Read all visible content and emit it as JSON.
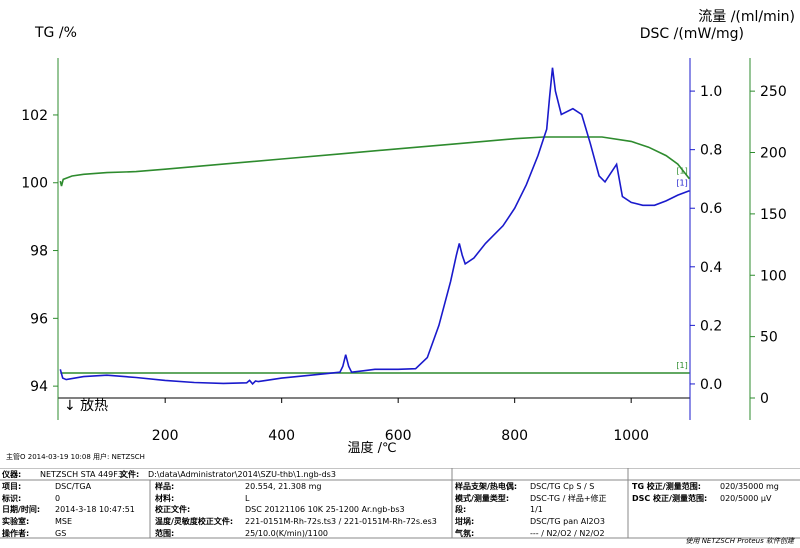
{
  "chart_data": {
    "type": "line",
    "y_label": "TG /%",
    "y2_label": "DSC /(mW/mg)",
    "y3_label": "流量 /(ml/min)",
    "x_label": "温度 /℃",
    "exo_label": "↓ 放热",
    "stamp": "主管O  2014-03-19 10:08  用户: NETZSCH",
    "xlim": [
      16,
      1101
    ],
    "xticks": [
      200,
      400,
      600,
      800,
      1000
    ],
    "ylim": [
      93.65,
      103.68
    ],
    "yticks": [
      94,
      96,
      98,
      100,
      102
    ],
    "y2lim": [
      -0.048,
      1.113
    ],
    "y2ticks": [
      {
        "value": 0,
        "label": "0.0"
      },
      0.2,
      0.4,
      0.6,
      0.8,
      {
        "value": 1,
        "label": "1.0"
      }
    ],
    "y3lim": [
      0,
      277
    ],
    "y3ticks": [
      0,
      50,
      100,
      150,
      200,
      250
    ],
    "series": [
      {
        "axis": "y",
        "color": "#2e8b2e",
        "end_label": "[1]",
        "x": [
          20,
          22,
          25,
          40,
          60,
          100,
          150,
          200,
          300,
          400,
          500,
          600,
          700,
          800,
          850,
          900,
          950,
          1000,
          1030,
          1060,
          1080,
          1100
        ],
        "values": [
          100.05,
          99.9,
          100.1,
          100.2,
          100.25,
          100.3,
          100.33,
          100.4,
          100.55,
          100.7,
          100.85,
          101.0,
          101.15,
          101.3,
          101.35,
          101.35,
          101.35,
          101.22,
          101.05,
          100.8,
          100.55,
          100.12
        ]
      },
      {
        "axis": "y3",
        "color": "#2e8b2e",
        "end_label": "[1]",
        "x": [
          20,
          1100
        ],
        "values": [
          20.4,
          20.4
        ]
      },
      {
        "axis": "y2",
        "color": "#1a1acc",
        "end_label": "[1]",
        "x": [
          20,
          24,
          30,
          60,
          100,
          150,
          200,
          250,
          300,
          340,
          345,
          350,
          355,
          360,
          400,
          450,
          500,
          505,
          510,
          515,
          520,
          540,
          560,
          600,
          630,
          650,
          670,
          690,
          700,
          705,
          710,
          715,
          730,
          750,
          780,
          800,
          820,
          840,
          850,
          855,
          860,
          865,
          870,
          880,
          900,
          915,
          930,
          945,
          955,
          965,
          975,
          985,
          1000,
          1020,
          1040,
          1060,
          1080,
          1100
        ],
        "values": [
          0.05,
          0.02,
          0.015,
          0.025,
          0.03,
          0.022,
          0.012,
          0.005,
          0.002,
          0.004,
          0.012,
          0.0,
          0.01,
          0.008,
          0.02,
          0.03,
          0.04,
          0.06,
          0.1,
          0.06,
          0.04,
          0.045,
          0.05,
          0.05,
          0.052,
          0.09,
          0.2,
          0.35,
          0.44,
          0.48,
          0.44,
          0.41,
          0.43,
          0.48,
          0.54,
          0.6,
          0.68,
          0.78,
          0.84,
          0.87,
          0.98,
          1.08,
          1.0,
          0.92,
          0.94,
          0.92,
          0.82,
          0.71,
          0.69,
          0.72,
          0.75,
          0.64,
          0.62,
          0.61,
          0.61,
          0.625,
          0.645,
          0.66
        ]
      }
    ]
  },
  "footer": {
    "top": [
      [
        "仪器:",
        "NETZSCH STA 449F3"
      ],
      [
        "文件:",
        "D:\\data\\Administrator\\2014\\SZU-thb\\1.ngb-ds3"
      ]
    ],
    "columns": [
      [
        [
          "项目:",
          "DSC/TGA"
        ],
        [
          "标识:",
          "0"
        ],
        [
          "日期/时间:",
          "2014-3-18 10:47:51"
        ],
        [
          "实验室:",
          "MSE"
        ],
        [
          "操作者:",
          "GS"
        ]
      ],
      [
        [
          "样品:",
          "20.554, 21.308 mg"
        ],
        [
          "材料:",
          "L"
        ],
        [
          "校正文件:",
          "DSC 20121106 10K 25-1200 Ar.ngb-bs3"
        ],
        [
          "温度/灵敏度校正文件:",
          "221-0151M-Rh-72s.ts3 / 221-0151M-Rh-72s.es3"
        ],
        [
          "范围:",
          "25/10.0(K/min)/1100"
        ]
      ],
      [
        [
          "样品支架/热电偶:",
          "DSC/TG Cp S / S"
        ],
        [
          "模式/测量类型:",
          "DSC-TG / 样品+修正"
        ],
        [
          "段:",
          "1/1"
        ],
        [
          "坩埚:",
          "DSC/TG pan Al2O3"
        ],
        [
          "气氛:",
          "--- / N2/O2 / N2/O2"
        ]
      ],
      [
        [
          "TG 校正/测量范围:",
          "020/35000 mg"
        ],
        [
          "DSC 校正/测量范围:",
          "020/5000 µV"
        ]
      ]
    ],
    "credit": "使用 NETZSCH Proteus 软件创建"
  }
}
